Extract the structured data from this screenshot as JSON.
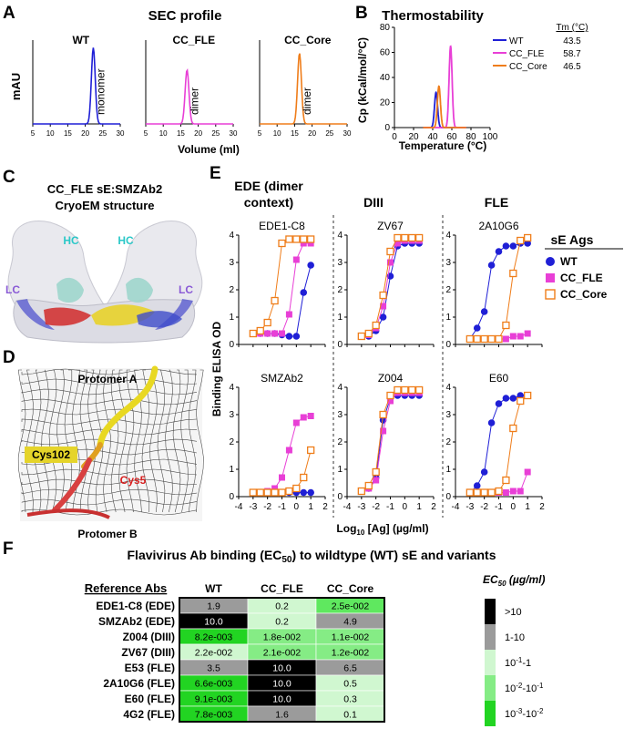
{
  "panels": {
    "A": {
      "letter": "A",
      "title": "SEC profile",
      "ylabel": "mAU",
      "xlabel": "Volume (ml)",
      "x_ticks": [
        "5",
        "10",
        "15",
        "20",
        "25",
        "30"
      ],
      "chart_data": {
        "type": "line",
        "x_axis_range": [
          5,
          30
        ],
        "series": [
          {
            "name": "WT",
            "annotation": "monomer",
            "color": "#1f1fd6",
            "peak_x": 22.3,
            "peak_height": 1.0
          },
          {
            "name": "CC_FLE",
            "annotation": "dimer",
            "color": "#e83fd6",
            "peak_x": 16.8,
            "peak_height": 0.71
          },
          {
            "name": "CC_Core",
            "annotation": "dimer",
            "color": "#ef7d1a",
            "peak_x": 16.4,
            "peak_height": 0.93
          }
        ]
      }
    },
    "B": {
      "letter": "B",
      "title": "Thermostability",
      "ylabel": "Cp (kCal/mol/°C)",
      "xlabel": "Temperature (°C)",
      "x_ticks": [
        "0",
        "20",
        "40",
        "60",
        "80",
        "100"
      ],
      "y_ticks": [
        "0",
        "20",
        "40",
        "60",
        "80"
      ],
      "tm_header": "Tm (°C)",
      "chart_data": {
        "type": "line",
        "x_range": [
          0,
          100
        ],
        "y_range": [
          0,
          80
        ],
        "series": [
          {
            "name": "WT",
            "tm": "43.5",
            "color": "#1f1fd6",
            "peak_x": 43.5,
            "peak_y": 28
          },
          {
            "name": "CC_FLE",
            "tm": "58.7",
            "color": "#e83fd6",
            "peak_x": 58.7,
            "peak_y": 65
          },
          {
            "name": "CC_Core",
            "tm": "46.5",
            "color": "#ef7d1a",
            "peak_x": 46.5,
            "peak_y": 33
          }
        ]
      }
    },
    "C": {
      "letter": "C",
      "title_line1": "CC_FLE sE:SMZAb2",
      "title_line2": "CryoEM structure",
      "labels": [
        "HC",
        "HC",
        "LC",
        "LC"
      ]
    },
    "D": {
      "letter": "D",
      "labels": {
        "top": "Protomer A",
        "bottom": "Protomer B",
        "res1": "Cys102",
        "res2": "Cys5"
      }
    },
    "E": {
      "letter": "E",
      "group_titles": {
        "ede": "EDE (dimer\ncontext)",
        "ede_line1": "EDE (dimer",
        "ede_line2": "context)",
        "diii": "DIII",
        "fle": "FLE"
      },
      "ylabel": "Binding ELISA OD",
      "xlabel_prefix": "Log",
      "xlabel_sub": "10",
      "xlabel_suffix": " [Ag] (µg/ml)",
      "x_ticks": [
        "-4",
        "-3",
        "-2",
        "-1",
        "0",
        "1",
        "2"
      ],
      "y_ticks": [
        "0",
        "1",
        "2",
        "3",
        "4"
      ],
      "legend_title": "sE Ags",
      "legend": [
        {
          "name": "WT",
          "color": "#1f1fd6",
          "marker": "circle"
        },
        {
          "name": "CC_FLE",
          "color": "#e83fd6",
          "marker": "square"
        },
        {
          "name": "CC_Core",
          "color": "#ef7d1a",
          "marker": "open-square"
        }
      ],
      "chart_data": [
        {
          "type": "scatter",
          "title": "EDE1-C8",
          "x": [
            -3,
            -2.5,
            -2,
            -1.5,
            -1,
            -0.5,
            0,
            0.5,
            1
          ],
          "series": [
            {
              "name": "WT",
              "values": [
                0.4,
                0.4,
                0.4,
                0.4,
                0.35,
                0.3,
                0.3,
                1.9,
                2.9
              ]
            },
            {
              "name": "CC_FLE",
              "values": [
                0.4,
                0.4,
                0.4,
                0.4,
                0.4,
                1.1,
                3.1,
                3.7,
                3.7
              ]
            },
            {
              "name": "CC_Core",
              "values": [
                0.4,
                0.5,
                0.8,
                1.6,
                3.7,
                3.85,
                3.85,
                3.85,
                3.85
              ]
            }
          ]
        },
        {
          "type": "scatter",
          "title": "ZV67",
          "x": [
            -3,
            -2.5,
            -2,
            -1.5,
            -1,
            -0.5,
            0,
            0.5,
            1
          ],
          "series": [
            {
              "name": "WT",
              "values": [
                0.3,
                0.3,
                0.5,
                1.0,
                2.5,
                3.6,
                3.7,
                3.7,
                3.7
              ]
            },
            {
              "name": "CC_FLE",
              "values": [
                0.3,
                0.35,
                0.6,
                1.4,
                3.0,
                3.7,
                3.8,
                3.8,
                3.8
              ]
            },
            {
              "name": "CC_Core",
              "values": [
                0.3,
                0.4,
                0.7,
                1.8,
                3.4,
                3.9,
                3.9,
                3.9,
                3.9
              ]
            }
          ]
        },
        {
          "type": "scatter",
          "title": "2A10G6",
          "x": [
            -3,
            -2.5,
            -2,
            -1.5,
            -1,
            -0.5,
            0,
            0.5,
            1
          ],
          "series": [
            {
              "name": "WT",
              "values": [
                0.2,
                0.6,
                1.2,
                2.9,
                3.4,
                3.6,
                3.6,
                3.7,
                3.7
              ]
            },
            {
              "name": "CC_FLE",
              "values": [
                0.2,
                0.2,
                0.2,
                0.2,
                0.2,
                0.2,
                0.3,
                0.3,
                0.4
              ]
            },
            {
              "name": "CC_Core",
              "values": [
                0.2,
                0.2,
                0.2,
                0.2,
                0.2,
                0.7,
                2.6,
                3.8,
                3.9
              ]
            }
          ]
        },
        {
          "type": "scatter",
          "title": "SMZAb2",
          "x": [
            -3,
            -2.5,
            -2,
            -1.5,
            -1,
            -0.5,
            0,
            0.5,
            1
          ],
          "series": [
            {
              "name": "WT",
              "values": [
                0.15,
                0.15,
                0.15,
                0.15,
                0.15,
                0.15,
                0.15,
                0.15,
                0.15
              ]
            },
            {
              "name": "CC_FLE",
              "values": [
                0.15,
                0.15,
                0.2,
                0.3,
                0.7,
                1.7,
                2.7,
                2.9,
                2.95
              ]
            },
            {
              "name": "CC_Core",
              "values": [
                0.15,
                0.15,
                0.15,
                0.15,
                0.15,
                0.2,
                0.3,
                0.7,
                1.7
              ]
            }
          ]
        },
        {
          "type": "scatter",
          "title": "Z004",
          "x": [
            -3,
            -2.5,
            -2,
            -1.5,
            -1,
            -0.5,
            0,
            0.5,
            1
          ],
          "series": [
            {
              "name": "WT",
              "values": [
                0.2,
                0.3,
                0.7,
                2.8,
                3.6,
                3.7,
                3.7,
                3.7,
                3.7
              ]
            },
            {
              "name": "CC_FLE",
              "values": [
                0.2,
                0.3,
                0.6,
                2.4,
                3.5,
                3.8,
                3.8,
                3.8,
                3.8
              ]
            },
            {
              "name": "CC_Core",
              "values": [
                0.2,
                0.4,
                0.9,
                3.0,
                3.7,
                3.9,
                3.9,
                3.9,
                3.9
              ]
            }
          ]
        },
        {
          "type": "scatter",
          "title": "E60",
          "x": [
            -3,
            -2.5,
            -2,
            -1.5,
            -1,
            -0.5,
            0,
            0.5,
            1
          ],
          "series": [
            {
              "name": "WT",
              "values": [
                0.15,
                0.4,
                0.9,
                2.7,
                3.4,
                3.6,
                3.6,
                3.7,
                3.7
              ]
            },
            {
              "name": "CC_FLE",
              "values": [
                0.15,
                0.15,
                0.15,
                0.15,
                0.15,
                0.15,
                0.2,
                0.2,
                0.9
              ]
            },
            {
              "name": "CC_Core",
              "values": [
                0.15,
                0.15,
                0.15,
                0.15,
                0.2,
                0.6,
                2.5,
                3.5,
                3.7
              ]
            }
          ]
        }
      ]
    },
    "F": {
      "letter": "F",
      "title_pre": "Flavivirus Ab binding (EC",
      "title_sub": "50",
      "title_post": ") to wildtype (WT) sE and variants",
      "row_header": "Reference Abs",
      "col_headers": [
        "WT",
        "CC_FLE",
        "CC_Core"
      ],
      "chart_data": {
        "type": "heatmap",
        "rows": [
          "EDE1-C8 (EDE)",
          "SMZAb2 (EDE)",
          "Z004 (DIII)",
          "ZV67 (DIII)",
          "E53 (FLE)",
          "2A10G6 (FLE)",
          "E60 (FLE)",
          "4G2 (FLE)"
        ],
        "columns": [
          "WT",
          "CC_FLE",
          "CC_Core"
        ],
        "values": [
          [
            "1.9",
            "0.2",
            "2.5e-002"
          ],
          [
            "10.0",
            "0.2",
            "4.9"
          ],
          [
            "8.2e-003",
            "1.8e-002",
            "1.1e-002"
          ],
          [
            "2.2e-002",
            "2.1e-002",
            "1.2e-002"
          ],
          [
            "3.5",
            "10.0",
            "6.5"
          ],
          [
            "6.6e-003",
            "10.0",
            "0.5"
          ],
          [
            "9.1e-003",
            "10.0",
            "0.3"
          ],
          [
            "7.8e-003",
            "1.6",
            "0.1"
          ]
        ],
        "fill_colors": [
          [
            "#9b9b9b",
            "#d0f7d0",
            "#5fe85f"
          ],
          [
            "#000000",
            "#d0f7d0",
            "#9b9b9b"
          ],
          [
            "#22d422",
            "#85ec85",
            "#85ec85"
          ],
          [
            "#d0f7d0",
            "#85ec85",
            "#85ec85"
          ],
          [
            "#9b9b9b",
            "#000000",
            "#9b9b9b"
          ],
          [
            "#22d422",
            "#000000",
            "#d0f7d0"
          ],
          [
            "#22d422",
            "#000000",
            "#d0f7d0"
          ],
          [
            "#22d422",
            "#9b9b9b",
            "#d0f7d0"
          ]
        ],
        "legend_title": "EC50 (µg/ml)",
        "legend_title_base": "EC",
        "legend_title_sub": "50",
        "legend_title_unit": " (µg/ml)",
        "legend_labels": [
          ">10",
          "1-10",
          "10-1-1",
          "10-2-10-1",
          "10-3-10-2"
        ],
        "legend_colors": [
          "#000000",
          "#9b9b9b",
          "#d0f7d0",
          "#85ec85",
          "#22d422"
        ]
      }
    }
  }
}
